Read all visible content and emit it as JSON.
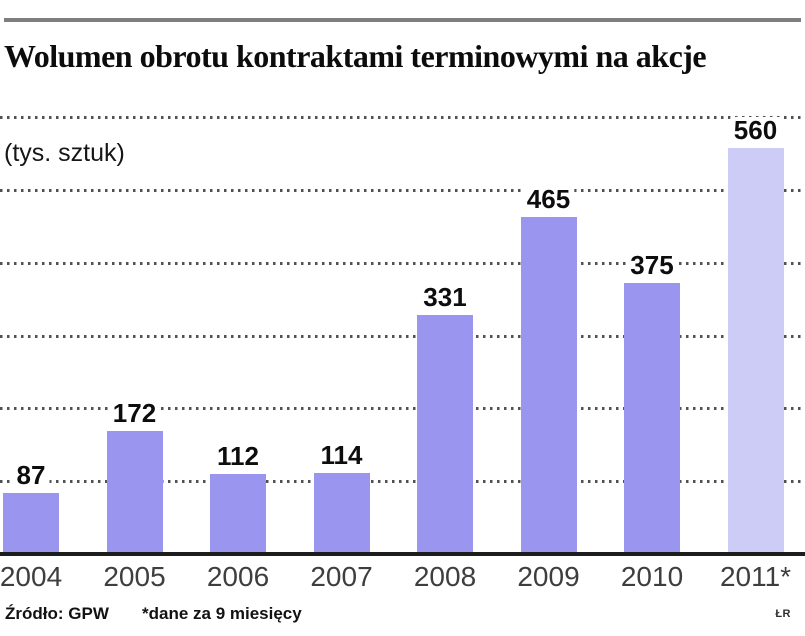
{
  "header": {
    "title": "Wolumen obrotu kontraktami terminowymi na akcje"
  },
  "chart_data": {
    "type": "bar",
    "title": "Wolumen obrotu kontraktami terminowymi na akcje",
    "unit_label": "(tys. sztuk)",
    "categories": [
      "2004",
      "2005",
      "2006",
      "2007",
      "2008",
      "2009",
      "2010",
      "2011*"
    ],
    "values": [
      87,
      172,
      112,
      114,
      331,
      465,
      375,
      560
    ],
    "ylim": [
      0,
      600
    ],
    "gridline_step": 100,
    "grid": "dotted-horizontal",
    "legend": "none",
    "bar_color": "#9a95ee",
    "bar_color_last": "#cdccf7",
    "axis_color": "#1d1d1d"
  },
  "footer": {
    "source": "Źródło: GPW",
    "note": "*dane za 9 miesięcy",
    "credit": "ŁR"
  }
}
